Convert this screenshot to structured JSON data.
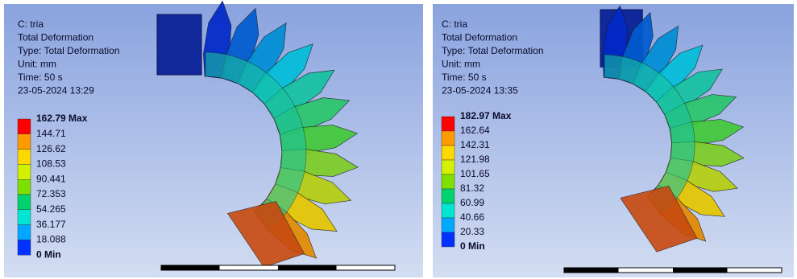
{
  "panels": [
    {
      "header": [
        "C: tria",
        "Total Deformation",
        "Type: Total Deformation",
        "Unit: mm",
        "Time: 50 s",
        "23-05-2024 13:29"
      ],
      "legend": [
        "162.79 Max",
        "144.71",
        "126.62",
        "108.53",
        "90.441",
        "72.353",
        "54.265",
        "36.177",
        "18.088",
        "0 Min"
      ]
    },
    {
      "header": [
        "C: tria",
        "Total Deformation",
        "Type: Total Deformation",
        "Unit: mm",
        "Time: 50 s",
        "23-05-2024 13:35"
      ],
      "legend": [
        "182.97 Max",
        "162.64",
        "142.31",
        "121.98",
        "101.65",
        "81.32",
        "60.99",
        "40.66",
        "20.33",
        "0 Min"
      ]
    }
  ]
}
